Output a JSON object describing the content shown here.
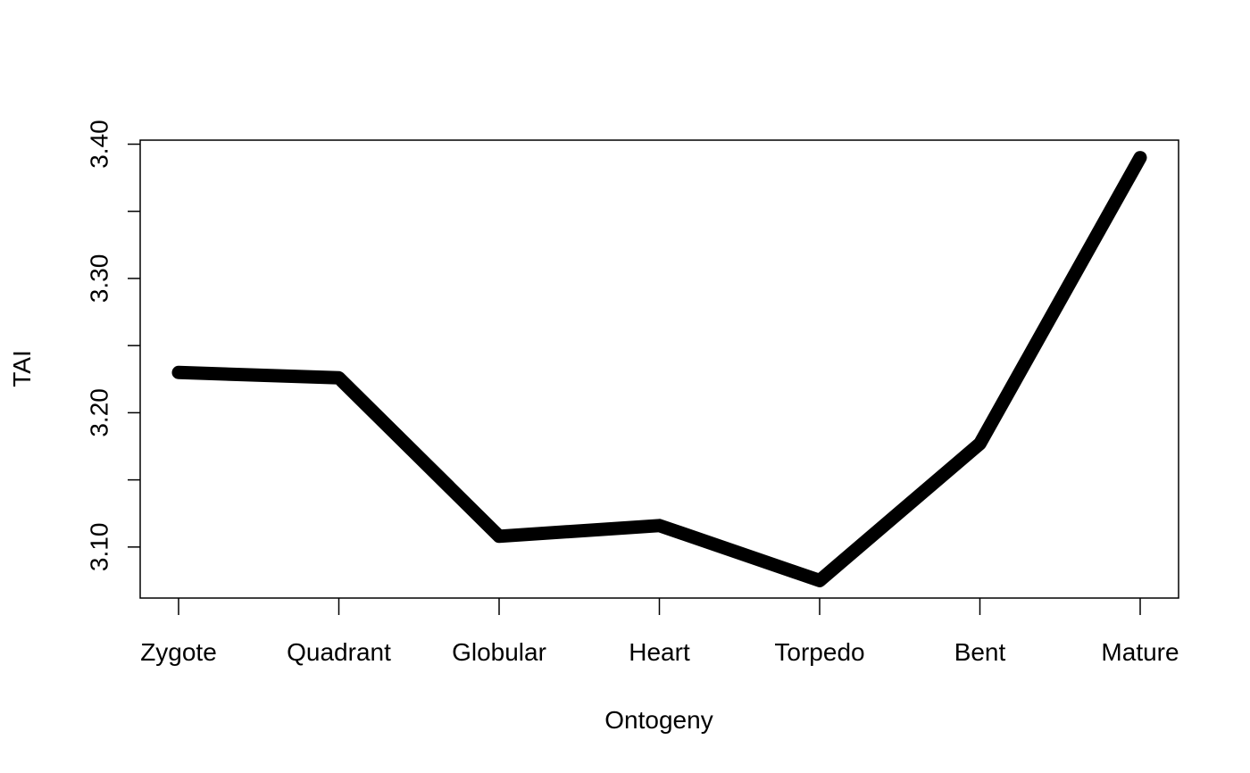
{
  "chart_data": {
    "type": "line",
    "title": "",
    "xlabel": "Ontogeny",
    "ylabel": "TAI",
    "categories": [
      "Zygote",
      "Quadrant",
      "Globular",
      "Heart",
      "Torpedo",
      "Bent",
      "Mature"
    ],
    "series": [
      {
        "values": [
          3.23,
          3.226,
          3.108,
          3.116,
          3.075,
          3.177,
          3.39
        ]
      }
    ],
    "ylim": [
      3.062,
      3.403
    ],
    "yticks": [
      3.1,
      3.15,
      3.2,
      3.25,
      3.3,
      3.35,
      3.4
    ],
    "ytick_labels": [
      "3.10",
      "",
      "3.20",
      "",
      "3.30",
      "",
      "3.40"
    ],
    "grid": false,
    "line_color": "#000000"
  }
}
